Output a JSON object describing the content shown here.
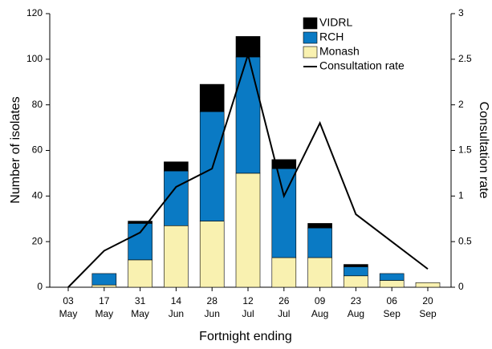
{
  "chart_data": {
    "type": "bar",
    "categories": [
      [
        "03",
        "May"
      ],
      [
        "17",
        "May"
      ],
      [
        "31",
        "May"
      ],
      [
        "14",
        "Jun"
      ],
      [
        "28",
        "Jun"
      ],
      [
        "12",
        "Jul"
      ],
      [
        "26",
        "Jul"
      ],
      [
        "09",
        "Aug"
      ],
      [
        "23",
        "Aug"
      ],
      [
        "06",
        "Sep"
      ],
      [
        "20",
        "Sep"
      ]
    ],
    "series": [
      {
        "name": "Monash",
        "color": "#f9f1b0",
        "values": [
          0,
          1,
          12,
          27,
          29,
          50,
          13,
          13,
          5,
          3,
          2
        ]
      },
      {
        "name": "RCH",
        "color": "#0a7ac4",
        "values": [
          0,
          5,
          16,
          24,
          48,
          51,
          39,
          13,
          4,
          3,
          0
        ]
      },
      {
        "name": "VIDRL",
        "color": "#000000",
        "values": [
          0,
          0,
          1,
          4,
          12,
          9,
          4,
          2,
          1,
          0,
          0
        ]
      },
      {
        "name": "Consultation rate",
        "color": "#000000",
        "type": "line",
        "axis": "y2",
        "values": [
          0,
          0.4,
          0.6,
          1.1,
          1.3,
          2.55,
          1.0,
          1.8,
          0.8,
          0.5,
          0.2
        ]
      }
    ],
    "xlabel": "Fortnight ending",
    "ylabel": "Number of isolates",
    "y2label": "Consultation rate",
    "ylim": [
      0,
      120
    ],
    "yticks": [
      0,
      20,
      40,
      60,
      80,
      100,
      120
    ],
    "y2lim": [
      0,
      3
    ],
    "y2ticks": [
      0,
      0.5,
      1,
      1.5,
      2,
      2.5,
      3
    ],
    "legend": "top-right"
  }
}
